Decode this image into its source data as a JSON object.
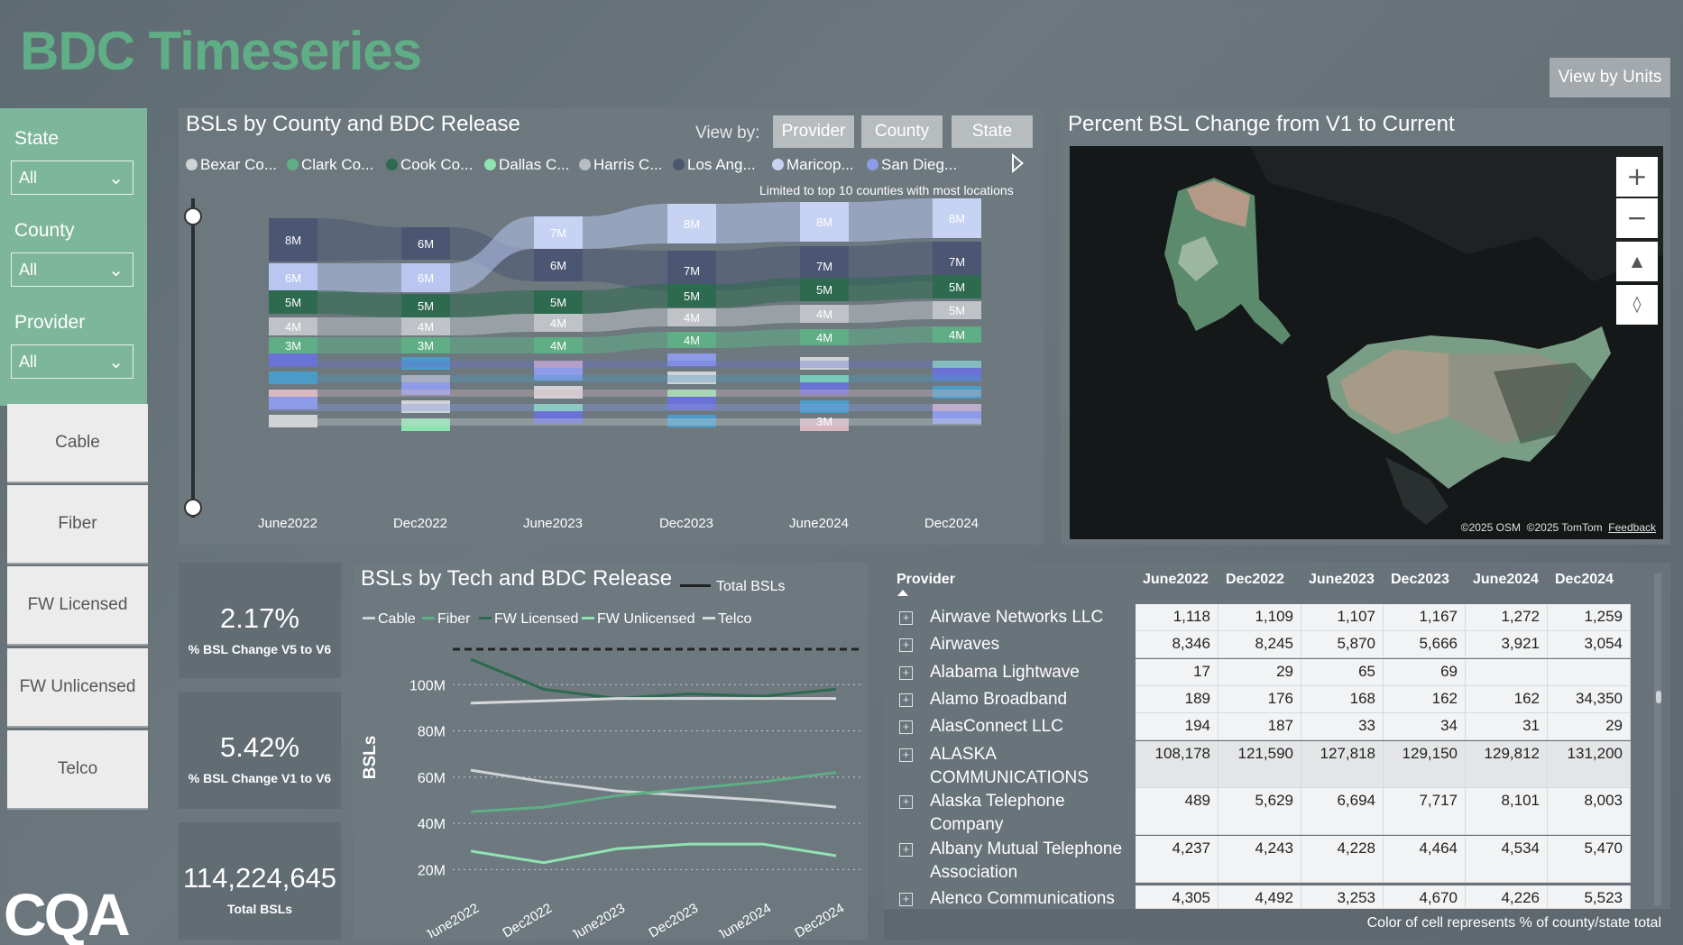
{
  "header": {
    "title": "BDC Timeseries",
    "view_units_label": "View by Units"
  },
  "filters": [
    {
      "label": "State",
      "value": "All"
    },
    {
      "label": "County",
      "value": "All"
    },
    {
      "label": "Provider",
      "value": "All"
    }
  ],
  "tech_buttons": [
    "Cable",
    "Fiber",
    "FW Licensed",
    "FW Unlicensed",
    "Telco"
  ],
  "logo_text": "CQA",
  "county_chart": {
    "title": "BSLs by County and BDC Release",
    "view_by_label": "View by:",
    "view_by_options": [
      "Provider",
      "County",
      "State"
    ],
    "legend": [
      {
        "name": "Bexar Co...",
        "color": "#cfd3d6"
      },
      {
        "name": "Clark Co...",
        "color": "#5fae86"
      },
      {
        "name": "Cook Co...",
        "color": "#2d6a4f"
      },
      {
        "name": "Dallas C...",
        "color": "#8fe3b1"
      },
      {
        "name": "Harris C...",
        "color": "#b9bdc1"
      },
      {
        "name": "Los Ang...",
        "color": "#4a5670"
      },
      {
        "name": "Maricop...",
        "color": "#c7d3f2"
      },
      {
        "name": "San Dieg...",
        "color": "#8d9be8"
      }
    ],
    "note": "Limited to top 10 counties with most locations",
    "categories": [
      "June2022",
      "Dec2022",
      "June2023",
      "Dec2023",
      "June2024",
      "Dec2024"
    ],
    "bands": [
      {
        "color": "#4b5673",
        "labels": [
          "8M",
          "6M",
          "6M",
          "7M",
          "7M",
          "7M"
        ]
      },
      {
        "color": "#b8c6f0",
        "labels": [
          "6M",
          "6M",
          "7M",
          "8M",
          "8M",
          "8M"
        ]
      },
      {
        "color": "#2d6a4f",
        "labels": [
          "5M",
          "5M",
          "5M",
          "5M",
          "5M",
          "5M"
        ]
      },
      {
        "color": "#bfc3c7",
        "labels": [
          "4M",
          "4M",
          "4M",
          "4M",
          "4M",
          "5M"
        ]
      },
      {
        "color": "#5fae86",
        "labels": [
          "3M",
          "3M",
          "4M",
          "4M",
          "4M",
          "4M"
        ]
      }
    ],
    "extra_label": "3M"
  },
  "map": {
    "title": "Percent BSL Change from V1 to Current",
    "credit_osm": "©2025 OSM",
    "credit_tomtom": "©2025 TomTom",
    "feedback": "Feedback"
  },
  "kpis": [
    {
      "value": "2.17%",
      "label": "% BSL Change V5 to V6"
    },
    {
      "value": "5.42%",
      "label": "% BSL Change V1 to V6"
    },
    {
      "value": "114,224,645",
      "label": "Total BSLs"
    }
  ],
  "chart_data": {
    "type": "line",
    "title": "BSLs by Tech and BDC Release",
    "ylabel": "BSLs",
    "x": [
      "June2022",
      "Dec2022",
      "June2023",
      "Dec2023",
      "June2024",
      "Dec2024"
    ],
    "y_ticks": [
      "20M",
      "40M",
      "60M",
      "80M",
      "100M"
    ],
    "ylim": [
      10,
      120
    ],
    "total_label": "Total BSLs",
    "series": [
      {
        "name": "Cable",
        "color": "#cfd3d6",
        "values": [
          63,
          58,
          54,
          52,
          50,
          47
        ]
      },
      {
        "name": "Fiber",
        "color": "#5fae86",
        "values": [
          45,
          47,
          52,
          55,
          58,
          62
        ]
      },
      {
        "name": "FW Licensed",
        "color": "#2d6a4f",
        "values": [
          111,
          98,
          94,
          96,
          95,
          98
        ]
      },
      {
        "name": "FW Unlicensed",
        "color": "#8fe3b1",
        "values": [
          28,
          23,
          29,
          31,
          31,
          26
        ]
      },
      {
        "name": "Telco",
        "color": "#d7dadc",
        "values": [
          92,
          93,
          94,
          94,
          94,
          94
        ]
      }
    ]
  },
  "provider_table": {
    "header": "Provider",
    "columns": [
      "June2022",
      "Dec2022",
      "June2023",
      "Dec2023",
      "June2024",
      "Dec2024"
    ],
    "rows": [
      {
        "name": "Airwave Networks LLC",
        "values": [
          "1,118",
          "1,109",
          "1,107",
          "1,167",
          "1,272",
          "1,259"
        ]
      },
      {
        "name": "Airwaves",
        "values": [
          "8,346",
          "8,245",
          "5,870",
          "5,666",
          "3,921",
          "3,054"
        ]
      },
      {
        "name": "Alabama Lightwave",
        "values": [
          "17",
          "29",
          "65",
          "69",
          "",
          ""
        ]
      },
      {
        "name": "Alamo Broadband",
        "values": [
          "189",
          "176",
          "168",
          "162",
          "162",
          "34,350"
        ]
      },
      {
        "name": "AlasConnect LLC",
        "values": [
          "194",
          "187",
          "33",
          "34",
          "31",
          "29"
        ]
      },
      {
        "name": "ALASKA COMMUNICATIONS",
        "values": [
          "108,178",
          "121,590",
          "127,818",
          "129,150",
          "129,812",
          "131,200"
        ]
      },
      {
        "name": "Alaska Telephone Company",
        "values": [
          "489",
          "5,629",
          "6,694",
          "7,717",
          "8,101",
          "8,003"
        ]
      },
      {
        "name": "Albany Mutual Telephone Association",
        "values": [
          "4,237",
          "4,243",
          "4,228",
          "4,464",
          "4,534",
          "5,470"
        ]
      },
      {
        "name": "Alenco Communications",
        "values": [
          "4,305",
          "4,492",
          "3,253",
          "4,670",
          "4,226",
          "5,523"
        ]
      }
    ],
    "footer": "Color of cell represents % of county/state total"
  }
}
